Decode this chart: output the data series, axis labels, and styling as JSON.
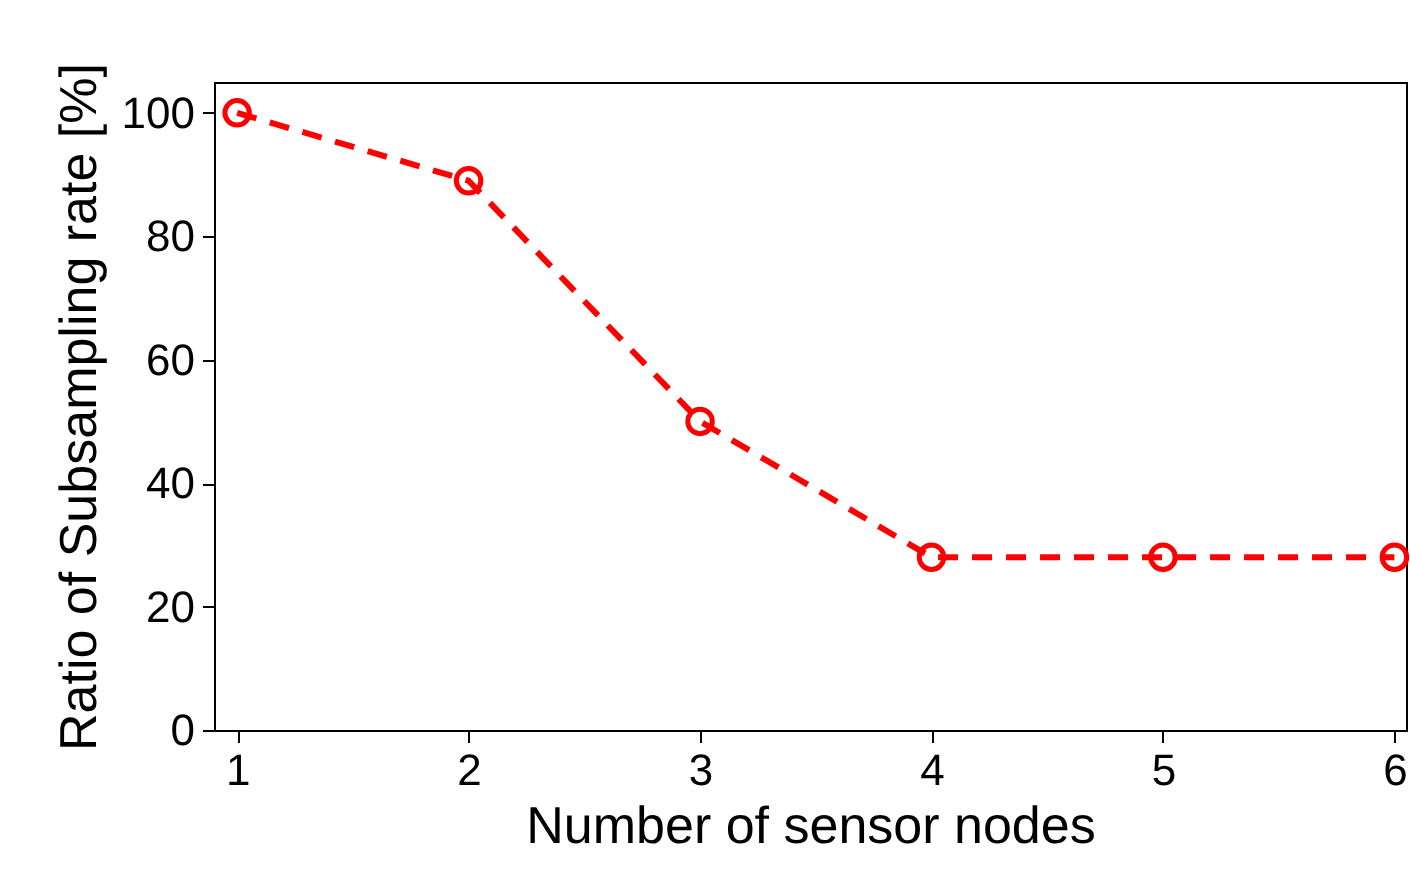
{
  "chart_data": {
    "type": "line",
    "xlabel": "Number of sensor nodes",
    "ylabel": "Ratio of Subsampling rate [%]",
    "x": [
      1,
      2,
      3,
      4,
      5,
      6
    ],
    "series": [
      {
        "color": "#ff0000",
        "values": [
          100,
          89,
          50,
          28,
          28,
          28
        ]
      }
    ],
    "xlim": [
      0.9,
      6.05
    ],
    "xticks": [
      1,
      2,
      3,
      4,
      5,
      6
    ],
    "ylim": [
      0,
      105
    ],
    "yticks": [
      0,
      20,
      40,
      60,
      80,
      100
    ],
    "grid": false,
    "marker": "circle",
    "line_style": "dashed"
  }
}
